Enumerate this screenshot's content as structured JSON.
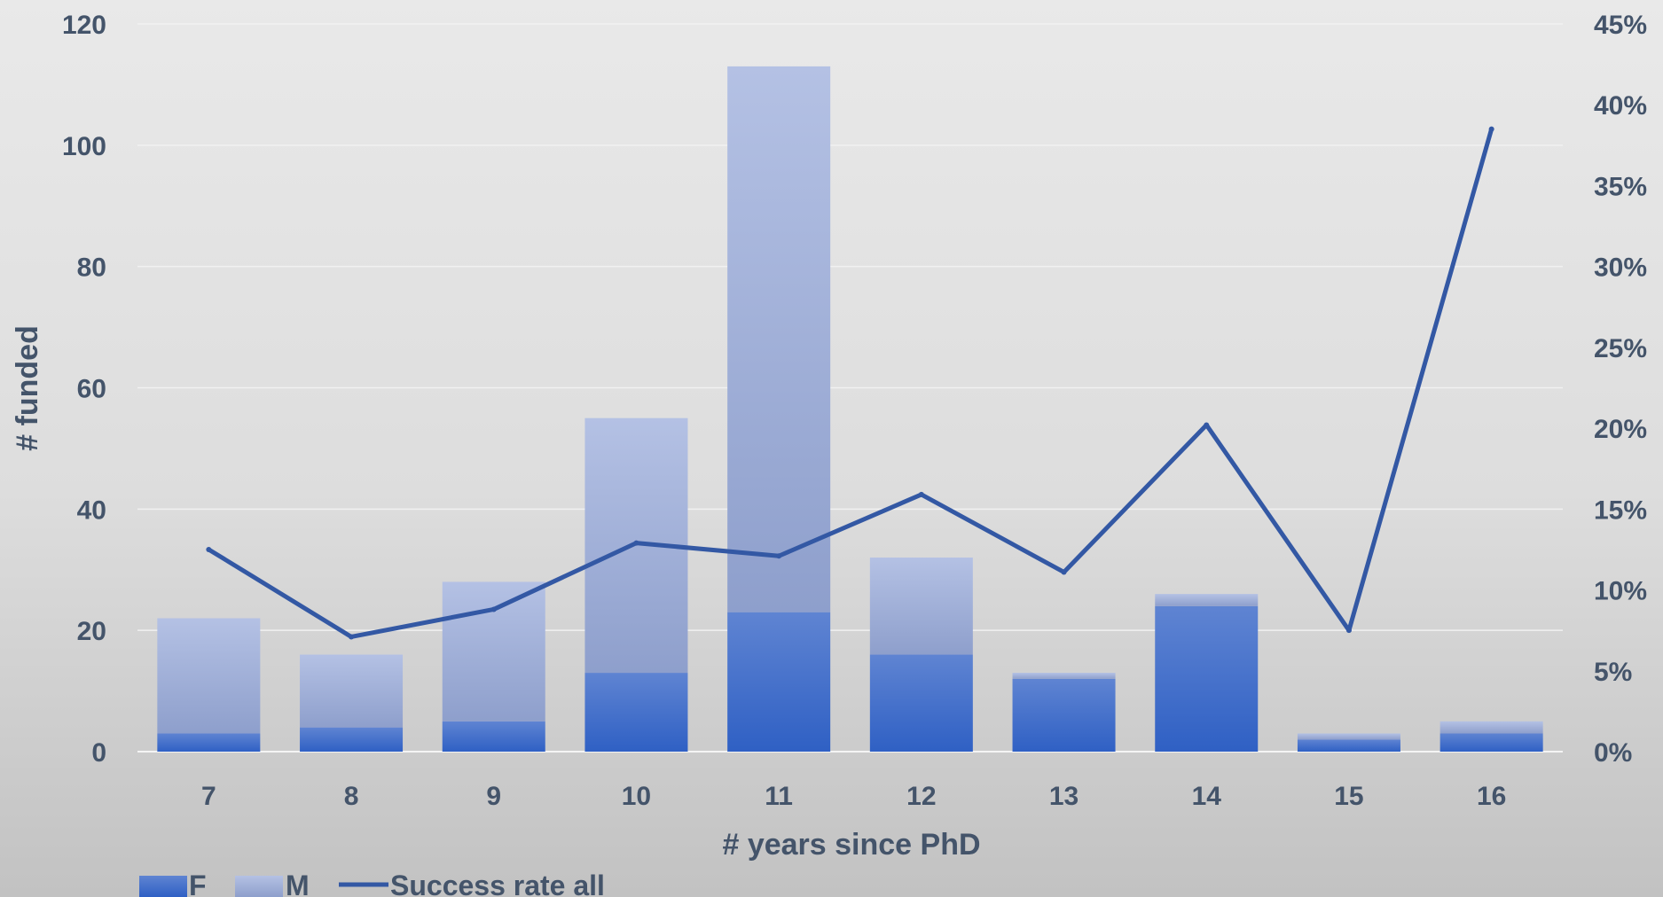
{
  "chart_data": {
    "type": "bar",
    "stacked": true,
    "categories": [
      "7",
      "8",
      "9",
      "10",
      "11",
      "12",
      "13",
      "14",
      "15",
      "16"
    ],
    "series": [
      {
        "name": "F",
        "type": "bar",
        "axis": "left",
        "color": "#3a68c8",
        "values": [
          3,
          4,
          5,
          13,
          23,
          16,
          12,
          24,
          2,
          3
        ]
      },
      {
        "name": "M",
        "type": "bar",
        "axis": "left",
        "color": "#a9b8e0",
        "values": [
          19,
          12,
          23,
          42,
          90,
          16,
          1,
          2,
          1,
          2
        ]
      },
      {
        "name": "Success rate all",
        "type": "line",
        "axis": "right",
        "color": "#3358a4",
        "values": [
          12.5,
          7.1,
          8.8,
          12.9,
          12.1,
          15.9,
          11.1,
          20.2,
          7.5,
          38.5
        ]
      }
    ],
    "xlabel": "# years since PhD",
    "ylabel": "# funded",
    "ylim": [
      0,
      120
    ],
    "y_ticks": [
      "0",
      "20",
      "40",
      "60",
      "80",
      "100",
      "120"
    ],
    "y2lim": [
      0,
      45
    ],
    "y2_ticks": [
      "0%",
      "5%",
      "10%",
      "15%",
      "20%",
      "25%",
      "30%",
      "35%",
      "40%",
      "45%"
    ],
    "grid": true,
    "legend": "bottom-left"
  }
}
